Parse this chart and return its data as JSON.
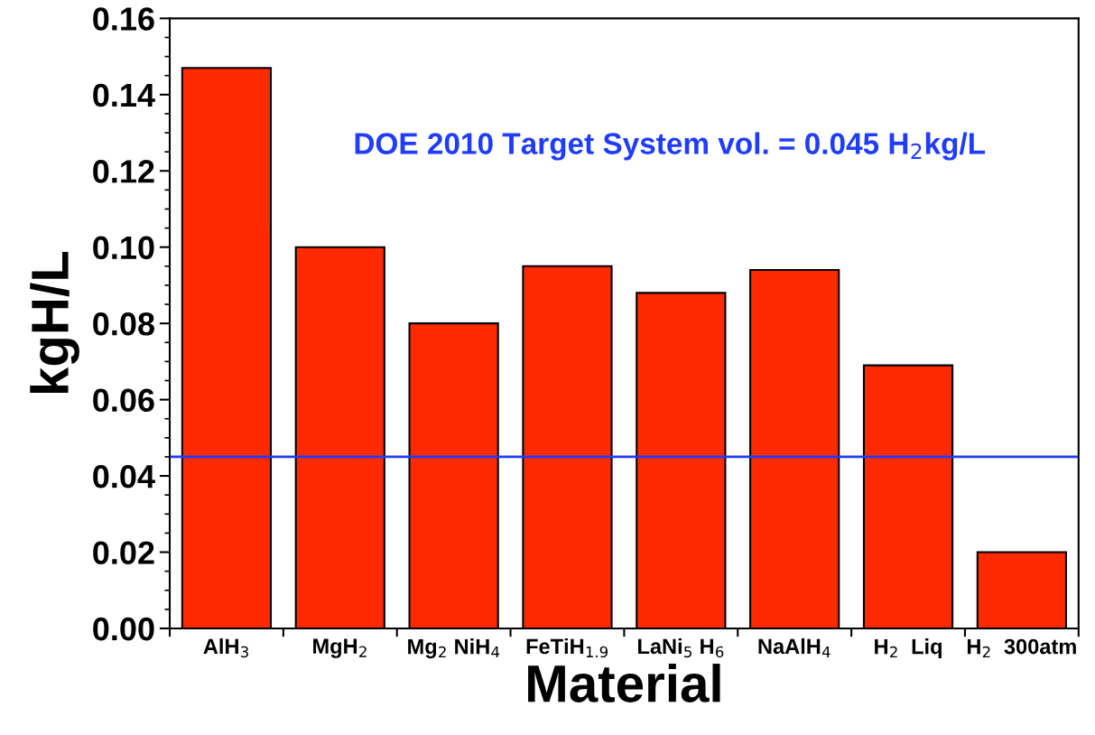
{
  "chart_data": {
    "type": "bar",
    "xlabel": "Material",
    "ylabel": "kgH/L",
    "categories": [
      "AlH$_{3}$",
      "MgH$_{2}$",
      "Mg$_{2}$ NiH$_{4}$",
      "FeTiH$_{1.9}$",
      "LaNi$_{5}$ H$_{6}$",
      "NaAlH$_{4}$",
      "H$_{2}$  Liq",
      "H$_{2}$  300atm"
    ],
    "values": [
      0.147,
      0.1,
      0.08,
      0.095,
      0.088,
      0.094,
      0.069,
      0.02
    ],
    "color": "#ff2a00",
    "ylim": [
      0,
      0.16
    ],
    "yticks": [
      {
        "value": 0,
        "label": "0.00"
      },
      {
        "value": 0.02,
        "label": "0.02"
      },
      {
        "value": 0.04,
        "label": "0.04"
      },
      {
        "value": 0.06,
        "label": "0.06"
      },
      {
        "value": 0.08,
        "label": "0.08"
      },
      {
        "value": 0.1,
        "label": "0.10"
      },
      {
        "value": 0.12,
        "label": "0.12"
      },
      {
        "value": 0.14,
        "label": "0.14"
      },
      {
        "value": 0.16,
        "label": "0.16"
      }
    ],
    "ref_lines": [
      {
        "axis": "y",
        "value": 0.045,
        "label": "DOE 2010 Target System vol. = 0.045 H$_{2}$kg/L",
        "color": "#1f3cff"
      }
    ],
    "grid": false,
    "legend": false
  }
}
